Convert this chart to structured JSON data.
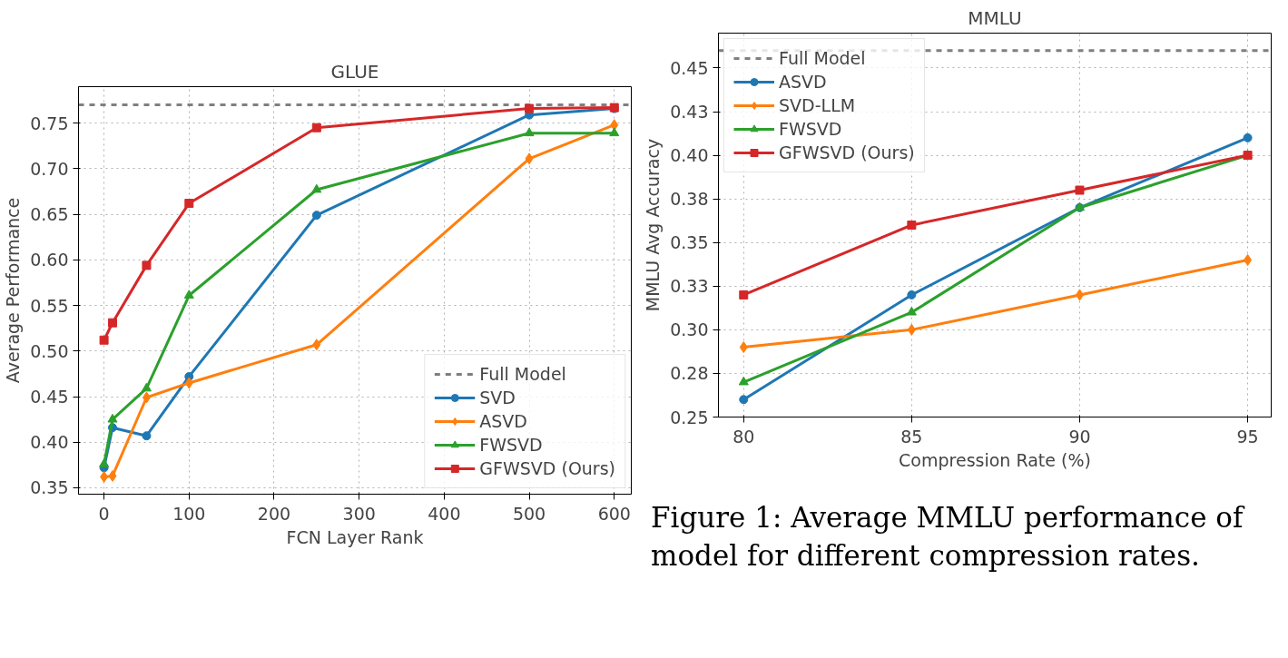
{
  "chart_data": [
    {
      "type": "line",
      "title": "GLUE",
      "xlabel": "FCN Layer Rank",
      "ylabel": "Average Performance",
      "x": [
        0,
        10,
        50,
        100,
        250,
        500,
        600
      ],
      "series": [
        {
          "name": "SVD",
          "color": "#1f77b4",
          "marker": "circle",
          "values": [
            0.372,
            0.416,
            0.407,
            0.472,
            0.649,
            0.759,
            0.766
          ]
        },
        {
          "name": "ASVD",
          "color": "#ff7f0e",
          "marker": "diamond",
          "values": [
            0.362,
            0.363,
            0.449,
            0.465,
            0.507,
            0.711,
            0.748
          ]
        },
        {
          "name": "FWSVD",
          "color": "#2ca02c",
          "marker": "triangle",
          "values": [
            0.376,
            0.425,
            0.459,
            0.561,
            0.677,
            0.739,
            0.739
          ]
        },
        {
          "name": "GFWSVD (Ours)",
          "color": "#d62728",
          "marker": "square",
          "values": [
            0.512,
            0.531,
            0.594,
            0.662,
            0.745,
            0.766,
            0.767
          ]
        }
      ],
      "ref_lines": [
        {
          "axis": "y",
          "value": 0.77,
          "label": "Full Model",
          "color": "#7f7f7f",
          "line_style": "dashed"
        }
      ],
      "xlim": [
        -30,
        620
      ],
      "xticks": [
        0,
        100,
        200,
        300,
        400,
        500,
        600
      ],
      "ylim": [
        0.343,
        0.79
      ],
      "yticks": [
        {
          "value": 0.35,
          "label": "0.35"
        },
        {
          "value": 0.4,
          "label": "0.40"
        },
        {
          "value": 0.45,
          "label": "0.45"
        },
        {
          "value": 0.5,
          "label": "0.50"
        },
        {
          "value": 0.55,
          "label": "0.55"
        },
        {
          "value": 0.6,
          "label": "0.60"
        },
        {
          "value": 0.65,
          "label": "0.65"
        },
        {
          "value": 0.7,
          "label": "0.70"
        },
        {
          "value": 0.75,
          "label": "0.75"
        }
      ],
      "grid": true,
      "legend": "bottom right",
      "line_style": "solid"
    },
    {
      "type": "line",
      "title": "MMLU",
      "xlabel": "Compression Rate (%)",
      "ylabel": "MMLU Avg Accuracy",
      "x": [
        80,
        85,
        90,
        95
      ],
      "series": [
        {
          "name": "ASVD",
          "color": "#1f77b4",
          "marker": "circle",
          "values": [
            0.26,
            0.32,
            0.37,
            0.41
          ]
        },
        {
          "name": "SVD-LLM",
          "color": "#ff7f0e",
          "marker": "diamond",
          "values": [
            0.29,
            0.3,
            0.32,
            0.34
          ]
        },
        {
          "name": "FWSVD",
          "color": "#2ca02c",
          "marker": "triangle",
          "values": [
            0.27,
            0.31,
            0.37,
            0.4
          ]
        },
        {
          "name": "GFWSVD (Ours)",
          "color": "#d62728",
          "marker": "square",
          "values": [
            0.32,
            0.36,
            0.38,
            0.4
          ]
        }
      ],
      "ref_lines": [
        {
          "axis": "y",
          "value": 0.46,
          "label": "Full Model",
          "color": "#7f7f7f",
          "line_style": "dashed"
        }
      ],
      "xlim": [
        79.25,
        95.7
      ],
      "xticks": [
        80,
        85,
        90,
        95
      ],
      "ylim": [
        0.25,
        0.47
      ],
      "yticks": [
        {
          "value": 0.25,
          "label": "0.25"
        },
        {
          "value": 0.275,
          "label": "0.28"
        },
        {
          "value": 0.3,
          "label": "0.30"
        },
        {
          "value": 0.325,
          "label": "0.33"
        },
        {
          "value": 0.35,
          "label": "0.35"
        },
        {
          "value": 0.375,
          "label": "0.38"
        },
        {
          "value": 0.4,
          "label": "0.40"
        },
        {
          "value": 0.425,
          "label": "0.43"
        },
        {
          "value": 0.45,
          "label": "0.45"
        }
      ],
      "grid": true,
      "legend": "top left",
      "line_style": "solid",
      "annotations": [
        "Figure 1: Average MMLU performance of model for different compression rates."
      ]
    }
  ]
}
